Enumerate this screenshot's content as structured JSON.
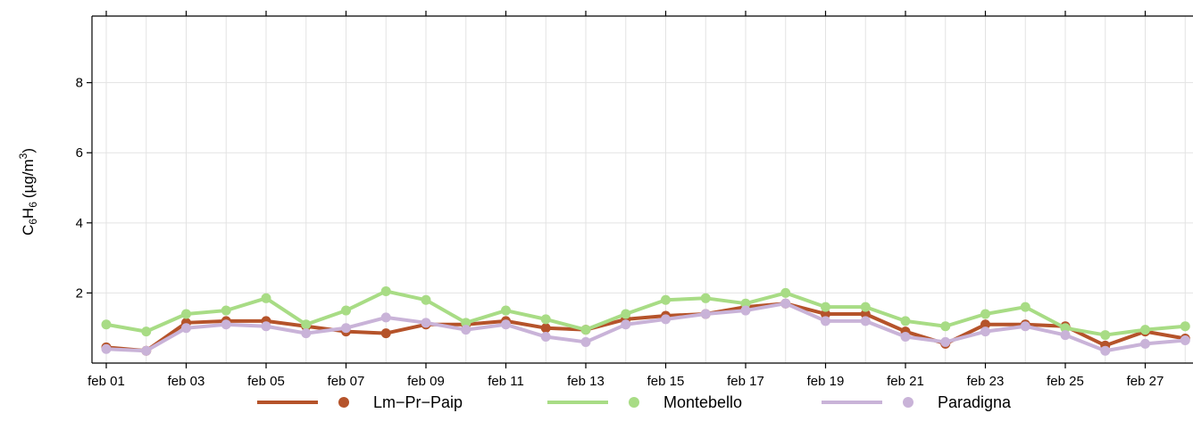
{
  "chart_data": {
    "type": "line",
    "ylabel": "C6H6 (µg/m3)",
    "ylabel_parts": {
      "c": "C",
      "sub1": "6",
      "h": "H",
      "sub2": "6",
      "unit": "(µg/m",
      "sup": "3",
      "close": ")"
    },
    "ylim": [
      0,
      9.9
    ],
    "yticks": [
      2,
      4,
      6,
      8
    ],
    "grid": true,
    "legend_position": "bottom",
    "x": [
      "feb 01",
      "feb 02",
      "feb 03",
      "feb 04",
      "feb 05",
      "feb 06",
      "feb 07",
      "feb 08",
      "feb 09",
      "feb 10",
      "feb 11",
      "feb 12",
      "feb 13",
      "feb 14",
      "feb 15",
      "feb 16",
      "feb 17",
      "feb 18",
      "feb 19",
      "feb 20",
      "feb 21",
      "feb 22",
      "feb 23",
      "feb 24",
      "feb 25",
      "feb 26",
      "feb 27",
      "feb 28"
    ],
    "xtick_labels": [
      "feb 01",
      "feb 03",
      "feb 05",
      "feb 07",
      "feb 09",
      "feb 11",
      "feb 13",
      "feb 15",
      "feb 17",
      "feb 19",
      "feb 21",
      "feb 23",
      "feb 25",
      "feb 27"
    ],
    "series": [
      {
        "name": "Lm−Pr−Paip",
        "color": "#b5532a",
        "values": [
          0.45,
          0.35,
          1.15,
          1.2,
          1.2,
          1.05,
          0.9,
          0.85,
          1.1,
          1.1,
          1.2,
          1.0,
          0.95,
          1.25,
          1.35,
          1.4,
          1.6,
          1.7,
          1.4,
          1.4,
          0.9,
          0.55,
          1.1,
          1.1,
          1.05,
          0.5,
          0.9,
          0.7
        ]
      },
      {
        "name": "Montebello",
        "color": "#a8dc85",
        "values": [
          1.1,
          0.9,
          1.4,
          1.5,
          1.85,
          1.1,
          1.5,
          2.05,
          1.8,
          1.15,
          1.5,
          1.25,
          0.95,
          1.4,
          1.8,
          1.85,
          1.7,
          2.0,
          1.6,
          1.6,
          1.2,
          1.05,
          1.4,
          1.6,
          1.0,
          0.8,
          0.95,
          1.05
        ]
      },
      {
        "name": "Paradigna",
        "color": "#c9b3d8",
        "values": [
          0.4,
          0.35,
          1.0,
          1.1,
          1.05,
          0.85,
          1.0,
          1.3,
          1.15,
          0.95,
          1.1,
          0.75,
          0.6,
          1.1,
          1.25,
          1.4,
          1.5,
          1.7,
          1.2,
          1.2,
          0.75,
          0.6,
          0.9,
          1.05,
          0.8,
          0.35,
          0.55,
          0.65
        ]
      }
    ]
  }
}
